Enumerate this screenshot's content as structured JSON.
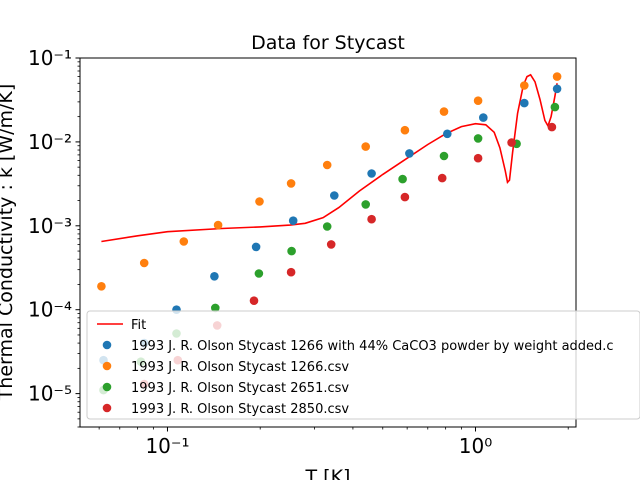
{
  "chart_data": {
    "type": "scatter",
    "title": "Data for Stycast",
    "xlabel": "T [K]",
    "ylabel": "Thermal Conductivity : k [W/m/K]",
    "xscale": "log",
    "yscale": "log",
    "xlim": [
      0.052,
      2.12
    ],
    "ylim": [
      4e-06,
      0.1
    ],
    "xticks": [
      {
        "value": 0.1,
        "label": "10⁻¹"
      },
      {
        "value": 1,
        "label": "10⁰"
      }
    ],
    "yticks": [
      {
        "value": 1e-05,
        "label": "10⁻⁵"
      },
      {
        "value": 0.0001,
        "label": "10⁻⁴"
      },
      {
        "value": 0.001,
        "label": "10⁻³"
      },
      {
        "value": 0.01,
        "label": "10⁻²"
      },
      {
        "value": 0.1,
        "label": "10⁻¹"
      }
    ],
    "grid": false,
    "legend_position": "lower-left",
    "line": {
      "name": "Fit",
      "color": "#ff0000",
      "points": [
        [
          0.061,
          0.00065
        ],
        [
          0.08,
          0.00076
        ],
        [
          0.1,
          0.00085
        ],
        [
          0.15,
          0.00093
        ],
        [
          0.2,
          0.00097
        ],
        [
          0.25,
          0.00102
        ],
        [
          0.28,
          0.00107
        ],
        [
          0.32,
          0.00125
        ],
        [
          0.36,
          0.00165
        ],
        [
          0.42,
          0.0026
        ],
        [
          0.5,
          0.0041
        ],
        [
          0.6,
          0.0064
        ],
        [
          0.7,
          0.0093
        ],
        [
          0.8,
          0.0125
        ],
        [
          0.9,
          0.0152
        ],
        [
          1.0,
          0.0165
        ],
        [
          1.08,
          0.016
        ],
        [
          1.15,
          0.013
        ],
        [
          1.2,
          0.0085
        ],
        [
          1.25,
          0.0045
        ],
        [
          1.27,
          0.0033
        ],
        [
          1.29,
          0.0035
        ],
        [
          1.32,
          0.0075
        ],
        [
          1.37,
          0.022
        ],
        [
          1.43,
          0.047
        ],
        [
          1.47,
          0.06
        ],
        [
          1.51,
          0.063
        ],
        [
          1.56,
          0.052
        ],
        [
          1.62,
          0.032
        ],
        [
          1.68,
          0.018
        ],
        [
          1.72,
          0.0155
        ],
        [
          1.76,
          0.02
        ],
        [
          1.81,
          0.035
        ],
        [
          1.84,
          0.05
        ]
      ]
    },
    "series": [
      {
        "name": "1993 J. R. Olson Stycast 1266 with 44% CaCO3 powder by weight added.c",
        "color": "#1f77b4",
        "points": [
          [
            0.062,
            2.5e-05
          ],
          [
            0.084,
            4e-05
          ],
          [
            0.107,
            0.0001
          ],
          [
            0.142,
            0.00025
          ],
          [
            0.194,
            0.00056
          ],
          [
            0.256,
            0.00115
          ],
          [
            0.348,
            0.0023
          ],
          [
            0.46,
            0.0042
          ],
          [
            0.61,
            0.0073
          ],
          [
            0.81,
            0.0125
          ],
          [
            1.06,
            0.0195
          ],
          [
            1.44,
            0.029
          ],
          [
            1.84,
            0.043
          ]
        ]
      },
      {
        "name": "1993 J. R. Olson Stycast 1266.csv",
        "color": "#ff7f0e",
        "points": [
          [
            0.061,
            0.00019
          ],
          [
            0.084,
            0.00036
          ],
          [
            0.113,
            0.00065
          ],
          [
            0.146,
            0.00102
          ],
          [
            0.199,
            0.00195
          ],
          [
            0.252,
            0.0032
          ],
          [
            0.33,
            0.0053
          ],
          [
            0.44,
            0.0088
          ],
          [
            0.59,
            0.0138
          ],
          [
            0.79,
            0.023
          ],
          [
            1.02,
            0.031
          ],
          [
            1.44,
            0.047
          ],
          [
            1.84,
            0.06
          ]
        ]
      },
      {
        "name": "1993 J. R. Olson Stycast 2651.csv",
        "color": "#2ca02c",
        "points": [
          [
            0.062,
            1.1e-05
          ],
          [
            0.082,
            2.4e-05
          ],
          [
            0.107,
            5.2e-05
          ],
          [
            0.143,
            0.000105
          ],
          [
            0.198,
            0.00027
          ],
          [
            0.253,
            0.0005
          ],
          [
            0.33,
            0.00098
          ],
          [
            0.44,
            0.0018
          ],
          [
            0.58,
            0.0036
          ],
          [
            0.79,
            0.0068
          ],
          [
            1.02,
            0.011
          ],
          [
            1.36,
            0.0095
          ],
          [
            1.81,
            0.026
          ]
        ]
      },
      {
        "name": "1993 J. R. Olson Stycast 2850.csv",
        "color": "#d62728",
        "points": [
          [
            0.084,
            1.3e-05
          ],
          [
            0.108,
            2.5e-05
          ],
          [
            0.145,
            6.5e-05
          ],
          [
            0.191,
            0.000128
          ],
          [
            0.252,
            0.00028
          ],
          [
            0.34,
            0.0006
          ],
          [
            0.46,
            0.0012
          ],
          [
            0.59,
            0.0022
          ],
          [
            0.78,
            0.0037
          ],
          [
            1.02,
            0.0064
          ],
          [
            1.31,
            0.0098
          ],
          [
            1.77,
            0.015
          ]
        ]
      }
    ]
  }
}
